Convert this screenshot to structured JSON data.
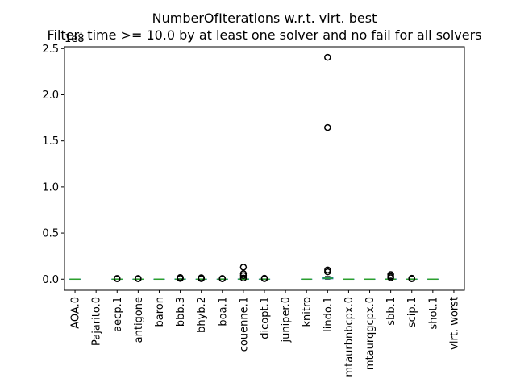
{
  "chart_data": {
    "type": "boxplot",
    "title": "NumberOfIterations w.r.t. virt. best",
    "subtitle": "Filter: time >= 10.0 by at least one solver and no fail for all solvers",
    "offset_label": "1e8",
    "ylim": [
      -0.12,
      2.52
    ],
    "yticks": [
      0.0,
      0.5,
      1.0,
      1.5,
      2.0,
      2.5
    ],
    "ytick_labels": [
      "0.0",
      "0.5",
      "1.0",
      "1.5",
      "2.0",
      "2.5"
    ],
    "grid": false,
    "categories": [
      "AOA.0",
      "Pajarito.0",
      "aecp.1",
      "antigone",
      "baron",
      "bbb.3",
      "bhyb.2",
      "boa.1",
      "couenne.1",
      "dicopt.1",
      "juniper.0",
      "knitro",
      "lindo.1",
      "mtaurbnbcpx.0",
      "mtaurqgcpx.0",
      "sbb.1",
      "scip.1",
      "shot.1",
      "virt. worst"
    ],
    "series": [
      {
        "box": [
          0,
          0,
          0,
          0,
          0
        ],
        "outliers": []
      },
      {
        "box": null,
        "outliers": []
      },
      {
        "box": [
          0,
          0,
          0,
          0,
          0.003
        ],
        "outliers": [
          0.005,
          0.008
        ]
      },
      {
        "box": [
          0,
          0,
          0,
          0,
          0.003
        ],
        "outliers": [
          0.005,
          0.008
        ]
      },
      {
        "box": [
          0,
          0,
          0,
          0,
          0
        ],
        "outliers": []
      },
      {
        "box": [
          0,
          0,
          0,
          0.002,
          0.005
        ],
        "outliers": [
          0.008,
          0.012,
          0.018
        ]
      },
      {
        "box": [
          0,
          0,
          0,
          0,
          0.003
        ],
        "outliers": [
          0.006,
          0.01,
          0.015
        ]
      },
      {
        "box": [
          0,
          0,
          0,
          0,
          0.003
        ],
        "outliers": [
          0.005,
          0.008
        ]
      },
      {
        "box": [
          0,
          0,
          0,
          0.002,
          0.006
        ],
        "outliers": [
          0.012,
          0.04,
          0.06,
          0.13
        ]
      },
      {
        "box": [
          0,
          0,
          0,
          0,
          0.003
        ],
        "outliers": [
          0.006,
          0.01
        ]
      },
      {
        "box": null,
        "outliers": []
      },
      {
        "box": [
          0,
          0,
          0,
          0,
          0
        ],
        "outliers": []
      },
      {
        "box": [
          0,
          0.005,
          0.01,
          0.02,
          0.03
        ],
        "outliers": [
          0.08,
          0.1,
          1.645,
          2.405
        ]
      },
      {
        "box": [
          0,
          0,
          0,
          0,
          0
        ],
        "outliers": []
      },
      {
        "box": [
          0,
          0,
          0,
          0,
          0
        ],
        "outliers": []
      },
      {
        "box": [
          0,
          0,
          0,
          0.002,
          0.008
        ],
        "outliers": [
          0.015,
          0.03,
          0.05
        ]
      },
      {
        "box": [
          0,
          0,
          0,
          0,
          0.003
        ],
        "outliers": [
          0.005,
          0.01
        ]
      },
      {
        "box": [
          0,
          0,
          0,
          0,
          0
        ],
        "outliers": []
      },
      {
        "box": null,
        "outliers": []
      }
    ]
  },
  "colors": {
    "box": "#1f77b4",
    "median": "#2ca02c",
    "whisker": "#000000",
    "flier": "#000000"
  }
}
